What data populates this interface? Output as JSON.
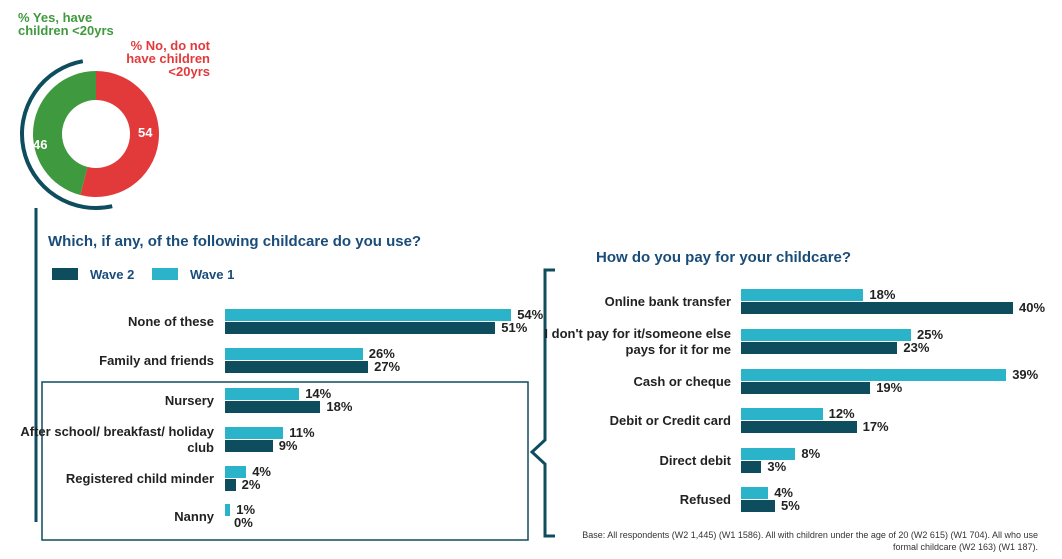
{
  "colors": {
    "wave2": "#0e4d5e",
    "wave1": "#2bb4c9",
    "yes": "#3f9a3f",
    "no": "#e23a3a",
    "arc": "#0e4d5e",
    "title": "#1a4c7a"
  },
  "donut": {
    "yes_label": "% Yes, have children <20yrs",
    "no_label": "% No, do not have children <20yrs",
    "yes_value": "46",
    "no_value": "54"
  },
  "legend": {
    "wave2": "Wave 2",
    "wave1": "Wave 1"
  },
  "left_chart": {
    "title": "Which, if any, of the following childcare do you use?"
  },
  "right_chart": {
    "title": "How do you pay for your childcare?"
  },
  "base_note": "Base: All respondents (W2 1,445) (W1 1586). All with children under the age of 20 (W2 615) (W1 704). All who use formal childcare (W2 163) (W1 187).",
  "chart_data": [
    {
      "type": "pie",
      "categories": [
        "% Yes, have children <20yrs",
        "% No, do not have children <20yrs"
      ],
      "values": [
        46,
        54
      ]
    },
    {
      "type": "bar",
      "title": "Which, if any, of the following childcare do you use?",
      "orientation": "horizontal",
      "categories": [
        "None of these",
        "Family and friends",
        "Nursery",
        "After school/ breakfast/ holiday club",
        "Registered child minder",
        "Nanny"
      ],
      "series": [
        {
          "name": "Wave 1",
          "values": [
            54,
            26,
            14,
            11,
            4,
            1
          ]
        },
        {
          "name": "Wave 2",
          "values": [
            51,
            27,
            18,
            9,
            2,
            0
          ]
        }
      ],
      "value_labels": {
        "Wave 1": [
          "54%",
          "26%",
          "14%",
          "11%",
          "4%",
          "1%"
        ],
        "Wave 2": [
          "51%",
          "27%",
          "18%",
          "9%",
          "2%",
          "0%"
        ]
      },
      "legend": "top-left",
      "grid": false
    },
    {
      "type": "bar",
      "title": "How do you pay for your childcare?",
      "orientation": "horizontal",
      "categories": [
        "Online bank transfer",
        "I don't pay for it/someone else pays for it for me",
        "Cash or cheque",
        "Debit or Credit card",
        "Direct debit",
        "Refused"
      ],
      "series": [
        {
          "name": "Wave 1",
          "values": [
            18,
            25,
            39,
            12,
            8,
            4
          ]
        },
        {
          "name": "Wave 2",
          "values": [
            40,
            23,
            19,
            17,
            3,
            5
          ]
        }
      ],
      "value_labels": {
        "Wave 1": [
          "18%",
          "25%",
          "39%",
          "12%",
          "8%",
          "4%"
        ],
        "Wave 2": [
          "40%",
          "23%",
          "19%",
          "17%",
          "3%",
          "5%"
        ]
      },
      "grid": false
    }
  ]
}
